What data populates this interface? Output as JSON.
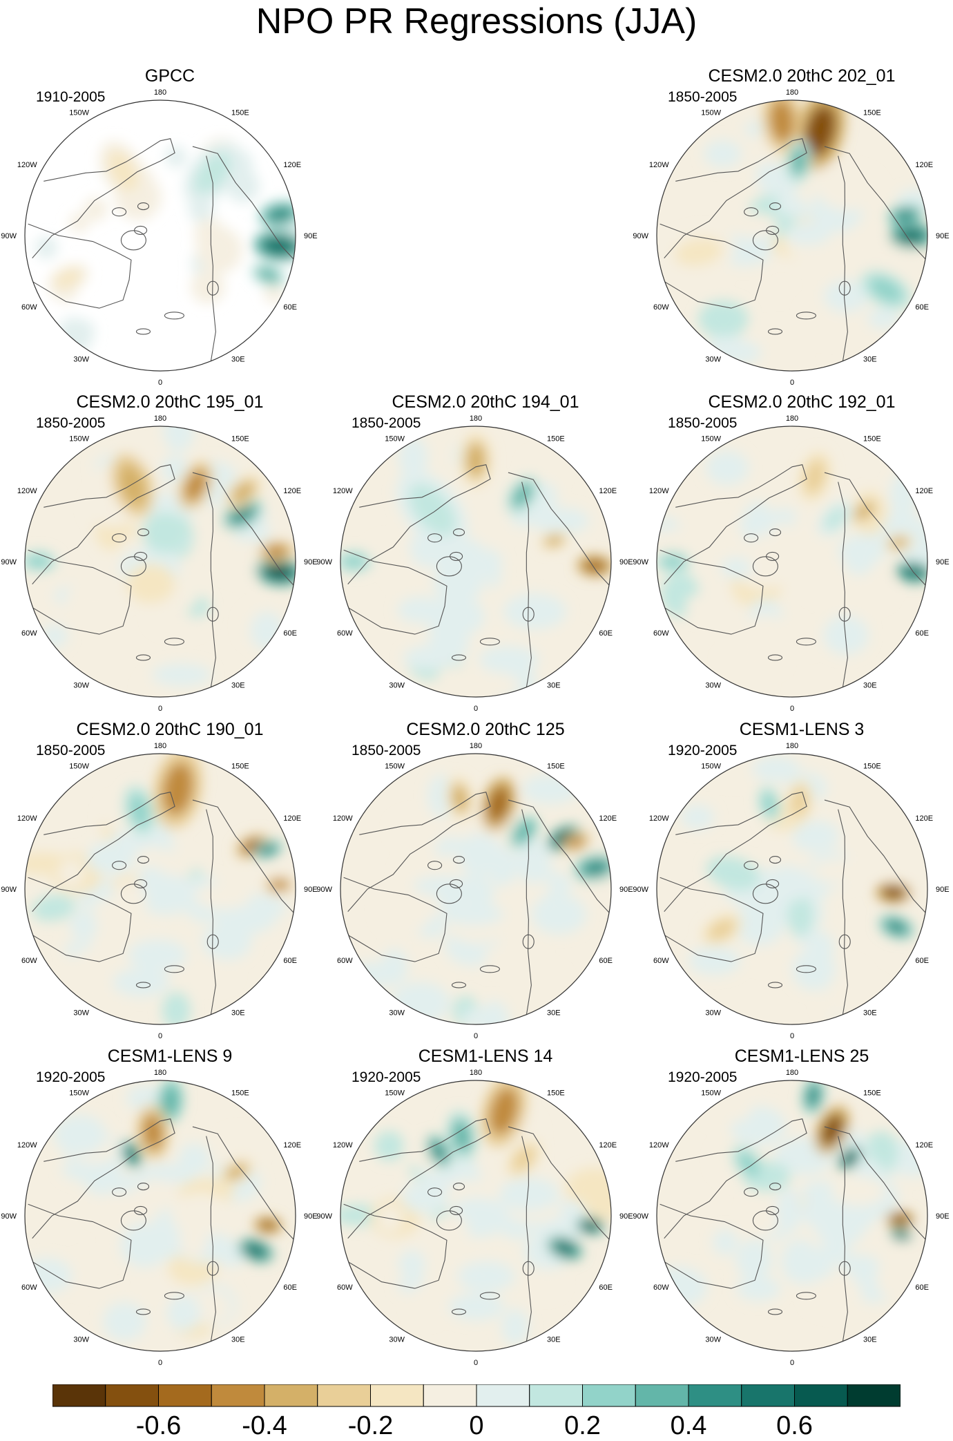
{
  "figure": {
    "title": "NPO PR Regressions (JJA)",
    "lon_labels": [
      "180",
      "150E",
      "120E",
      "90E",
      "60E",
      "30E",
      "0",
      "30W",
      "60W",
      "90W",
      "120W",
      "150W"
    ]
  },
  "palette": [
    "#5a3408",
    "#84500f",
    "#a46a1e",
    "#c08a3c",
    "#d4b068",
    "#e9cf98",
    "#f5e6c2",
    "#f5efe1",
    "#e2efee",
    "#c2e7e0",
    "#92d3c9",
    "#63b6a9",
    "#2e8f84",
    "#18756b",
    "#075a50",
    "#003c30"
  ],
  "chart_data": {
    "type": "heatmap",
    "title": "NPO PR Regressions (JJA)",
    "projection": "north polar stereographic",
    "colorbar": {
      "levels": [
        -0.7,
        -0.6,
        -0.5,
        -0.4,
        -0.3,
        -0.2,
        -0.1,
        0,
        0.1,
        0.2,
        0.3,
        0.4,
        0.5,
        0.6,
        0.7
      ],
      "tick_labels": [
        "-0.6",
        "-0.4",
        "-0.2",
        "0",
        "0.2",
        "0.4",
        "0.6"
      ],
      "tick_values": [
        -0.6,
        -0.4,
        -0.2,
        0,
        0.2,
        0.4,
        0.6
      ]
    },
    "panels": [
      {
        "name": "GPCC",
        "period": "1910-2005",
        "row": 0,
        "col": 0,
        "land_only": true,
        "blobs": [
          {
            "ang": 80,
            "r": 0.9,
            "s": 0.12,
            "v": 0.5
          },
          {
            "ang": 95,
            "r": 0.88,
            "s": 0.14,
            "v": 0.55
          },
          {
            "ang": 110,
            "r": 0.85,
            "s": 0.1,
            "v": 0.35
          },
          {
            "ang": -115,
            "r": 0.75,
            "s": 0.12,
            "v": -0.12
          },
          {
            "ang": -30,
            "r": 0.55,
            "s": 0.18,
            "v": -0.1
          },
          {
            "ang": 40,
            "r": 0.6,
            "s": 0.2,
            "v": 0.12
          }
        ]
      },
      {
        "name": "CESM2.0 20thC 202_01",
        "period": "1850-2005",
        "row": 0,
        "col": 2,
        "blobs": [
          {
            "ang": 15,
            "r": 0.8,
            "s": 0.22,
            "v": -0.6
          },
          {
            "ang": -5,
            "r": 0.85,
            "s": 0.18,
            "v": -0.45
          },
          {
            "ang": 5,
            "r": 0.55,
            "s": 0.12,
            "v": 0.32
          },
          {
            "ang": 90,
            "r": 0.88,
            "s": 0.12,
            "v": 0.6
          },
          {
            "ang": 80,
            "r": 0.85,
            "s": 0.1,
            "v": 0.45
          },
          {
            "ang": 120,
            "r": 0.8,
            "s": 0.15,
            "v": 0.22
          },
          {
            "ang": -100,
            "r": 0.7,
            "s": 0.2,
            "v": -0.12
          }
        ]
      },
      {
        "name": "CESM2.0 20thC 195_01",
        "period": "1850-2005",
        "row": 1,
        "col": 0,
        "blobs": [
          {
            "ang": -20,
            "r": 0.6,
            "s": 0.18,
            "v": -0.38
          },
          {
            "ang": 25,
            "r": 0.62,
            "s": 0.14,
            "v": -0.4
          },
          {
            "ang": 60,
            "r": 0.7,
            "s": 0.12,
            "v": 0.45
          },
          {
            "ang": 95,
            "r": 0.88,
            "s": 0.13,
            "v": 0.65
          },
          {
            "ang": 85,
            "r": 0.86,
            "s": 0.1,
            "v": -0.45
          },
          {
            "ang": 50,
            "r": 0.8,
            "s": 0.12,
            "v": -0.3
          },
          {
            "ang": -90,
            "r": 0.9,
            "s": 0.1,
            "v": 0.25
          }
        ]
      },
      {
        "name": "CESM2.0 20thC 194_01",
        "period": "1850-2005",
        "row": 1,
        "col": 1,
        "blobs": [
          {
            "ang": 0,
            "r": 0.75,
            "s": 0.15,
            "v": -0.35
          },
          {
            "ang": 35,
            "r": 0.6,
            "s": 0.12,
            "v": 0.35
          },
          {
            "ang": 75,
            "r": 0.6,
            "s": 0.08,
            "v": -0.3
          },
          {
            "ang": 92,
            "r": 0.88,
            "s": 0.1,
            "v": -0.55
          },
          {
            "ang": -40,
            "r": 0.5,
            "s": 0.25,
            "v": 0.18
          },
          {
            "ang": -90,
            "r": 0.9,
            "s": 0.1,
            "v": 0.3
          }
        ]
      },
      {
        "name": "CESM2.0 20thC 192_01",
        "period": "1850-2005",
        "row": 1,
        "col": 2,
        "blobs": [
          {
            "ang": 15,
            "r": 0.65,
            "s": 0.14,
            "v": -0.28
          },
          {
            "ang": 55,
            "r": 0.65,
            "s": 0.1,
            "v": -0.3
          },
          {
            "ang": 95,
            "r": 0.9,
            "s": 0.1,
            "v": 0.55
          },
          {
            "ang": 80,
            "r": 0.8,
            "s": 0.08,
            "v": -0.35
          },
          {
            "ang": -90,
            "r": 0.88,
            "s": 0.1,
            "v": 0.25
          },
          {
            "ang": 45,
            "r": 0.45,
            "s": 0.12,
            "v": 0.15
          }
        ]
      },
      {
        "name": "CESM2.0 20thC 190_01",
        "period": "1850-2005",
        "row": 2,
        "col": 0,
        "blobs": [
          {
            "ang": 10,
            "r": 0.75,
            "s": 0.22,
            "v": -0.45
          },
          {
            "ang": -15,
            "r": 0.6,
            "s": 0.14,
            "v": 0.25
          },
          {
            "ang": 65,
            "r": 0.75,
            "s": 0.1,
            "v": -0.5
          },
          {
            "ang": 88,
            "r": 0.88,
            "s": 0.08,
            "v": -0.4
          },
          {
            "ang": 70,
            "r": 0.85,
            "s": 0.08,
            "v": 0.45
          },
          {
            "ang": -100,
            "r": 0.8,
            "s": 0.12,
            "v": 0.2
          }
        ]
      },
      {
        "name": "CESM2.0 20thC 125",
        "period": "1850-2005",
        "row": 2,
        "col": 1,
        "blobs": [
          {
            "ang": 15,
            "r": 0.65,
            "s": 0.15,
            "v": -0.55
          },
          {
            "ang": -10,
            "r": 0.68,
            "s": 0.12,
            "v": -0.3
          },
          {
            "ang": 40,
            "r": 0.55,
            "s": 0.1,
            "v": 0.4
          },
          {
            "ang": 60,
            "r": 0.75,
            "s": 0.1,
            "v": 0.65
          },
          {
            "ang": 80,
            "r": 0.9,
            "s": 0.12,
            "v": 0.45
          },
          {
            "ang": 65,
            "r": 0.82,
            "s": 0.08,
            "v": -0.4
          }
        ]
      },
      {
        "name": "CESM1-LENS 3",
        "period": "1920-2005",
        "row": 2,
        "col": 2,
        "blobs": [
          {
            "ang": 5,
            "r": 0.65,
            "s": 0.12,
            "v": -0.22
          },
          {
            "ang": -15,
            "r": 0.65,
            "s": 0.1,
            "v": 0.3
          },
          {
            "ang": 92,
            "r": 0.75,
            "s": 0.1,
            "v": -0.6
          },
          {
            "ang": 110,
            "r": 0.82,
            "s": 0.1,
            "v": 0.45
          },
          {
            "ang": -75,
            "r": 0.45,
            "s": 0.15,
            "v": 0.2
          },
          {
            "ang": -120,
            "r": 0.6,
            "s": 0.12,
            "v": -0.2
          }
        ]
      },
      {
        "name": "CESM1-LENS 9",
        "period": "1920-2005",
        "row": 3,
        "col": 0,
        "blobs": [
          {
            "ang": 5,
            "r": 0.85,
            "s": 0.12,
            "v": 0.38
          },
          {
            "ang": -5,
            "r": 0.62,
            "s": 0.15,
            "v": -0.45
          },
          {
            "ang": -25,
            "r": 0.5,
            "s": 0.08,
            "v": 0.55
          },
          {
            "ang": 95,
            "r": 0.8,
            "s": 0.08,
            "v": -0.55
          },
          {
            "ang": 110,
            "r": 0.75,
            "s": 0.1,
            "v": 0.55
          },
          {
            "ang": 60,
            "r": 0.65,
            "s": 0.1,
            "v": -0.3
          }
        ]
      },
      {
        "name": "CESM1-LENS 14",
        "period": "1920-2005",
        "row": 3,
        "col": 1,
        "blobs": [
          {
            "ang": 15,
            "r": 0.8,
            "s": 0.2,
            "v": -0.45
          },
          {
            "ang": -10,
            "r": 0.6,
            "s": 0.14,
            "v": 0.35
          },
          {
            "ang": -30,
            "r": 0.55,
            "s": 0.1,
            "v": 0.45
          },
          {
            "ang": 95,
            "r": 0.85,
            "s": 0.08,
            "v": 0.62
          },
          {
            "ang": 110,
            "r": 0.7,
            "s": 0.1,
            "v": 0.55
          },
          {
            "ang": 40,
            "r": 0.55,
            "s": 0.12,
            "v": -0.2
          }
        ]
      },
      {
        "name": "CESM1-LENS 25",
        "period": "1920-2005",
        "row": 3,
        "col": 2,
        "blobs": [
          {
            "ang": 10,
            "r": 0.9,
            "s": 0.1,
            "v": 0.5
          },
          {
            "ang": 25,
            "r": 0.7,
            "s": 0.14,
            "v": -0.6
          },
          {
            "ang": 45,
            "r": 0.6,
            "s": 0.08,
            "v": 0.65
          },
          {
            "ang": 92,
            "r": 0.8,
            "s": 0.08,
            "v": -0.6
          },
          {
            "ang": 100,
            "r": 0.82,
            "s": 0.06,
            "v": 0.55
          },
          {
            "ang": -40,
            "r": 0.5,
            "s": 0.12,
            "v": 0.25
          }
        ]
      }
    ]
  }
}
